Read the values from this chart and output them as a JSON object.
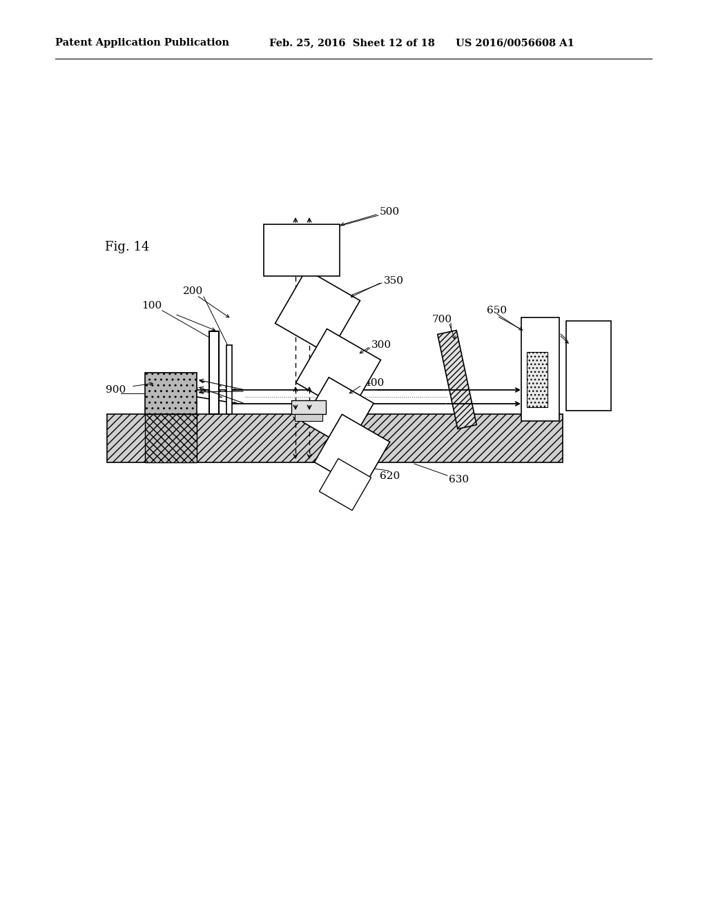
{
  "title_left": "Patent Application Publication",
  "title_mid": "Feb. 25, 2016  Sheet 12 of 18",
  "title_right": "US 2016/0056608 A1",
  "fig_label": "Fig. 14",
  "bg_color": "#ffffff"
}
